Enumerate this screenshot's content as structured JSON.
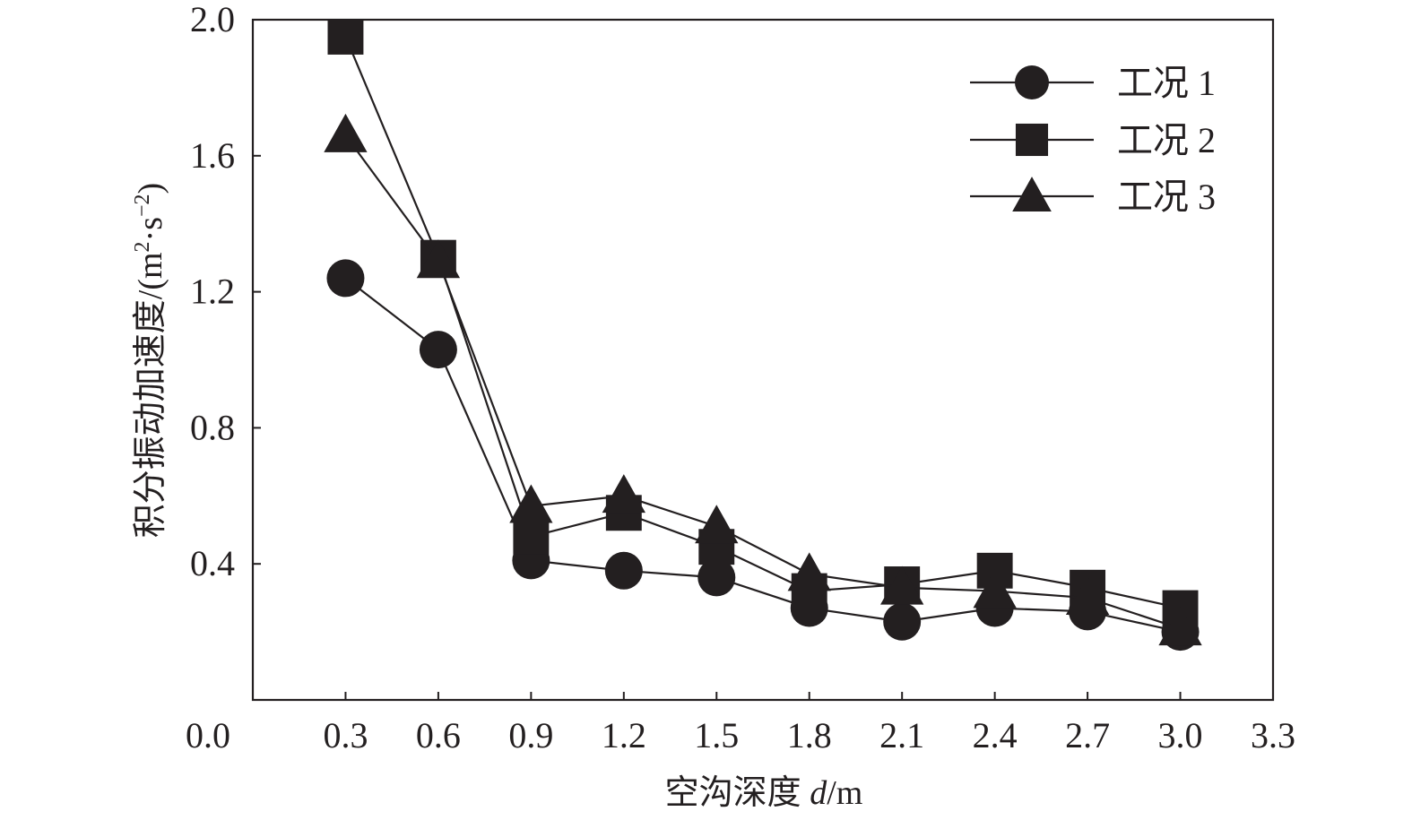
{
  "chart_data": {
    "type": "line",
    "xlabel_prefix": "空沟深度 ",
    "xlabel_var": "d",
    "xlabel_unit": "/m",
    "ylabel_main": "积分振动加速度/(m",
    "ylabel_sup1": "2",
    "ylabel_mid": "·s",
    "ylabel_sup2": "−2",
    "ylabel_end": ")",
    "xlim": [
      0.0,
      3.3
    ],
    "ylim": [
      0.0,
      2.0
    ],
    "x_ticks": [
      "0.3",
      "0.6",
      "0.9",
      "1.2",
      "1.5",
      "1.8",
      "2.1",
      "2.4",
      "2.7",
      "3.0",
      "3.3"
    ],
    "y_ticks": [
      "0.0",
      "0.4",
      "0.8",
      "1.2",
      "1.6",
      "2.0"
    ],
    "origin_label": "0.0",
    "x": [
      0.3,
      0.6,
      0.9,
      1.2,
      1.5,
      1.8,
      2.1,
      2.4,
      2.7,
      3.0
    ],
    "series": [
      {
        "name": "工况 1",
        "marker": "circle",
        "values": [
          1.24,
          1.03,
          0.41,
          0.38,
          0.36,
          0.27,
          0.23,
          0.27,
          0.26,
          0.2
        ]
      },
      {
        "name": "工况 2",
        "marker": "square",
        "values": [
          1.95,
          1.3,
          0.48,
          0.55,
          0.45,
          0.32,
          0.34,
          0.38,
          0.33,
          0.27
        ]
      },
      {
        "name": "工况 3",
        "marker": "triangle",
        "values": [
          1.66,
          1.29,
          0.57,
          0.6,
          0.51,
          0.37,
          0.33,
          0.32,
          0.3,
          0.21
        ]
      }
    ],
    "grid": false,
    "legend_position": "top-right",
    "color": "#231f20"
  }
}
